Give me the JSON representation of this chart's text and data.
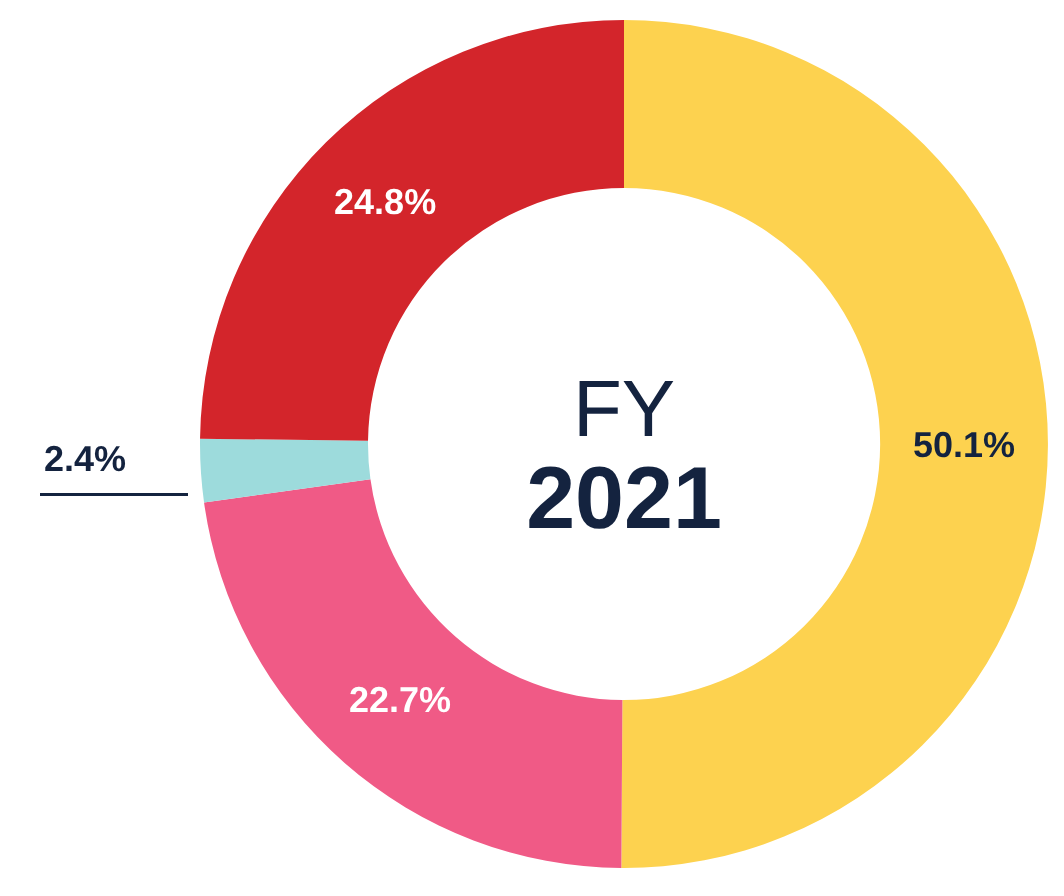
{
  "chart_data": {
    "type": "donut",
    "title": "FY",
    "subtitle": "2021",
    "categories": [
      null,
      null,
      null,
      null
    ],
    "values": [
      50.1,
      22.7,
      2.4,
      24.8
    ],
    "colors": [
      "#fdd24f",
      "#f05a86",
      "#9ddbdc",
      "#d3252b"
    ],
    "value_labels": [
      "50.1%",
      "22.7%",
      "2.4%",
      "24.8%"
    ]
  }
}
